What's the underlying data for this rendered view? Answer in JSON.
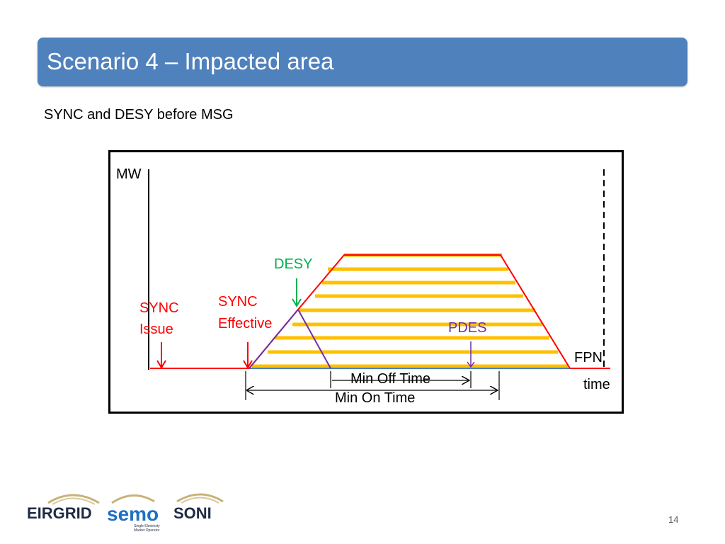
{
  "header": {
    "title": "Scenario 4 – Impacted area"
  },
  "subtitle": "SYNC and DESY before MSG",
  "diagram": {
    "y_axis_label": "MW",
    "x_axis_label": "time",
    "labels": {
      "desy": "DESY",
      "sync_issue_line1": "SYNC",
      "sync_issue_line2": "Issue",
      "sync_effective_line1": "SYNC",
      "sync_effective_line2": "Effective",
      "pdes": "PDES",
      "fpn": "FPN",
      "min_off_time": "Min Off Time",
      "min_on_time": "Min On Time"
    },
    "colors": {
      "sync": "#ff0000",
      "desy": "#00b050",
      "pdes": "#7030a0",
      "hatch": "#ffc000",
      "baseline": "#4f81bd",
      "axis": "#000000",
      "title_bar": "#4f81bd"
    }
  },
  "footer": {
    "logos": [
      "EIRGRID",
      "semo",
      "SONI"
    ],
    "semo_tagline_1": "Single Electricity",
    "semo_tagline_2": "Market Operator",
    "page_number": "14"
  }
}
